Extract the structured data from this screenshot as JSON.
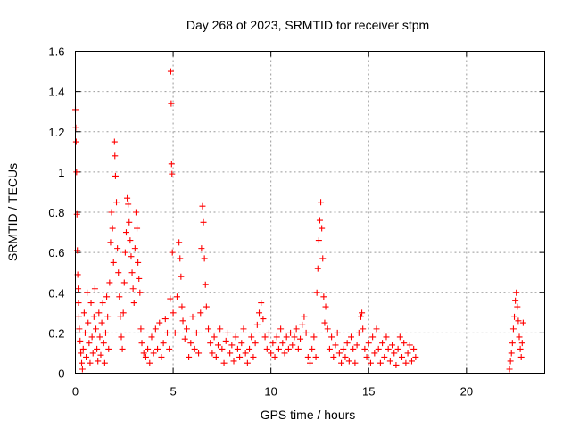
{
  "chart_data": {
    "type": "scatter",
    "title": "Day 268 of 2023, SRMTID for receiver stpm",
    "xlabel": "GPS time / hours",
    "ylabel": "SRMTID / TECUs",
    "xlim": [
      0,
      24
    ],
    "ylim": [
      0,
      1.6
    ],
    "xticks": [
      0,
      5,
      10,
      15,
      20
    ],
    "xtick_labels": [
      "0",
      "5",
      "10",
      "15",
      "20"
    ],
    "yticks": [
      0,
      0.2,
      0.4,
      0.6,
      0.8,
      1.0,
      1.2,
      1.4,
      1.6
    ],
    "ytick_labels": [
      "0",
      "0.2",
      "0.4",
      "0.6",
      "0.8",
      "1",
      "1.2",
      "1.4",
      "1.6"
    ],
    "grid": true,
    "marker": "+",
    "color": "#ff0000",
    "series": [
      {
        "name": "SRMTID",
        "points": [
          [
            0.0,
            1.31
          ],
          [
            0.02,
            1.22
          ],
          [
            0.04,
            1.15
          ],
          [
            0.06,
            1.0
          ],
          [
            0.08,
            0.79
          ],
          [
            0.1,
            0.61
          ],
          [
            0.12,
            0.49
          ],
          [
            0.14,
            0.42
          ],
          [
            0.16,
            0.35
          ],
          [
            0.18,
            0.28
          ],
          [
            0.2,
            0.22
          ],
          [
            0.24,
            0.16
          ],
          [
            0.28,
            0.1
          ],
          [
            0.32,
            0.05
          ],
          [
            0.36,
            0.02
          ],
          [
            0.4,
            0.12
          ],
          [
            0.45,
            0.3
          ],
          [
            0.5,
            0.2
          ],
          [
            0.55,
            0.08
          ],
          [
            0.6,
            0.4
          ],
          [
            0.65,
            0.25
          ],
          [
            0.7,
            0.15
          ],
          [
            0.75,
            0.05
          ],
          [
            0.8,
            0.35
          ],
          [
            0.85,
            0.18
          ],
          [
            0.9,
            0.1
          ],
          [
            0.95,
            0.28
          ],
          [
            1.0,
            0.42
          ],
          [
            1.05,
            0.22
          ],
          [
            1.1,
            0.12
          ],
          [
            1.15,
            0.06
          ],
          [
            1.2,
            0.3
          ],
          [
            1.25,
            0.18
          ],
          [
            1.3,
            0.09
          ],
          [
            1.35,
            0.25
          ],
          [
            1.4,
            0.35
          ],
          [
            1.45,
            0.15
          ],
          [
            1.5,
            0.05
          ],
          [
            1.55,
            0.2
          ],
          [
            1.6,
            0.38
          ],
          [
            1.65,
            0.28
          ],
          [
            1.7,
            0.12
          ],
          [
            1.75,
            0.45
          ],
          [
            1.8,
            0.65
          ],
          [
            1.85,
            0.8
          ],
          [
            1.9,
            0.72
          ],
          [
            1.95,
            0.55
          ],
          [
            2.0,
            1.15
          ],
          [
            2.02,
            1.08
          ],
          [
            2.05,
            0.98
          ],
          [
            2.1,
            0.85
          ],
          [
            2.15,
            0.62
          ],
          [
            2.2,
            0.5
          ],
          [
            2.25,
            0.38
          ],
          [
            2.3,
            0.28
          ],
          [
            2.35,
            0.18
          ],
          [
            2.4,
            0.12
          ],
          [
            2.45,
            0.3
          ],
          [
            2.5,
            0.45
          ],
          [
            2.55,
            0.6
          ],
          [
            2.6,
            0.7
          ],
          [
            2.65,
            0.87
          ],
          [
            2.7,
            0.84
          ],
          [
            2.75,
            0.75
          ],
          [
            2.8,
            0.66
          ],
          [
            2.85,
            0.58
          ],
          [
            2.9,
            0.5
          ],
          [
            2.95,
            0.42
          ],
          [
            3.0,
            0.35
          ],
          [
            3.05,
            0.62
          ],
          [
            3.1,
            0.8
          ],
          [
            3.15,
            0.72
          ],
          [
            3.2,
            0.55
          ],
          [
            3.25,
            0.47
          ],
          [
            3.3,
            0.4
          ],
          [
            3.35,
            0.22
          ],
          [
            3.4,
            0.15
          ],
          [
            3.5,
            0.1
          ],
          [
            3.6,
            0.08
          ],
          [
            3.7,
            0.12
          ],
          [
            3.8,
            0.05
          ],
          [
            3.9,
            0.18
          ],
          [
            4.0,
            0.1
          ],
          [
            4.1,
            0.22
          ],
          [
            4.2,
            0.12
          ],
          [
            4.3,
            0.25
          ],
          [
            4.4,
            0.08
          ],
          [
            4.5,
            0.15
          ],
          [
            4.6,
            0.27
          ],
          [
            4.7,
            0.2
          ],
          [
            4.8,
            0.12
          ],
          [
            4.85,
            0.37
          ],
          [
            4.88,
            1.5
          ],
          [
            4.9,
            1.34
          ],
          [
            4.92,
            1.04
          ],
          [
            4.94,
            0.99
          ],
          [
            4.96,
            0.6
          ],
          [
            5.0,
            0.3
          ],
          [
            5.1,
            0.2
          ],
          [
            5.2,
            0.38
          ],
          [
            5.3,
            0.65
          ],
          [
            5.35,
            0.57
          ],
          [
            5.4,
            0.48
          ],
          [
            5.45,
            0.33
          ],
          [
            5.5,
            0.26
          ],
          [
            5.6,
            0.17
          ],
          [
            5.7,
            0.22
          ],
          [
            5.8,
            0.08
          ],
          [
            5.9,
            0.15
          ],
          [
            6.0,
            0.28
          ],
          [
            6.1,
            0.12
          ],
          [
            6.2,
            0.2
          ],
          [
            6.3,
            0.1
          ],
          [
            6.4,
            0.3
          ],
          [
            6.45,
            0.62
          ],
          [
            6.5,
            0.83
          ],
          [
            6.55,
            0.75
          ],
          [
            6.6,
            0.57
          ],
          [
            6.65,
            0.44
          ],
          [
            6.7,
            0.33
          ],
          [
            6.8,
            0.22
          ],
          [
            6.9,
            0.15
          ],
          [
            7.0,
            0.1
          ],
          [
            7.1,
            0.18
          ],
          [
            7.2,
            0.08
          ],
          [
            7.3,
            0.14
          ],
          [
            7.4,
            0.22
          ],
          [
            7.5,
            0.12
          ],
          [
            7.6,
            0.05
          ],
          [
            7.7,
            0.16
          ],
          [
            7.8,
            0.2
          ],
          [
            7.9,
            0.1
          ],
          [
            8.0,
            0.14
          ],
          [
            8.1,
            0.06
          ],
          [
            8.2,
            0.18
          ],
          [
            8.3,
            0.12
          ],
          [
            8.4,
            0.08
          ],
          [
            8.5,
            0.15
          ],
          [
            8.6,
            0.22
          ],
          [
            8.7,
            0.1
          ],
          [
            8.8,
            0.05
          ],
          [
            8.9,
            0.12
          ],
          [
            9.0,
            0.18
          ],
          [
            9.1,
            0.08
          ],
          [
            9.2,
            0.15
          ],
          [
            9.3,
            0.24
          ],
          [
            9.4,
            0.3
          ],
          [
            9.5,
            0.35
          ],
          [
            9.6,
            0.27
          ],
          [
            9.7,
            0.18
          ],
          [
            9.8,
            0.12
          ],
          [
            9.9,
            0.2
          ],
          [
            10.0,
            0.1
          ],
          [
            10.1,
            0.15
          ],
          [
            10.2,
            0.08
          ],
          [
            10.3,
            0.18
          ],
          [
            10.4,
            0.12
          ],
          [
            10.5,
            0.22
          ],
          [
            10.6,
            0.15
          ],
          [
            10.7,
            0.1
          ],
          [
            10.8,
            0.18
          ],
          [
            10.9,
            0.12
          ],
          [
            11.0,
            0.2
          ],
          [
            11.1,
            0.14
          ],
          [
            11.2,
            0.18
          ],
          [
            11.3,
            0.22
          ],
          [
            11.4,
            0.12
          ],
          [
            11.5,
            0.17
          ],
          [
            11.6,
            0.24
          ],
          [
            11.7,
            0.28
          ],
          [
            11.8,
            0.2
          ],
          [
            11.9,
            0.08
          ],
          [
            12.0,
            0.05
          ],
          [
            12.1,
            0.12
          ],
          [
            12.2,
            0.18
          ],
          [
            12.3,
            0.08
          ],
          [
            12.35,
            0.4
          ],
          [
            12.4,
            0.52
          ],
          [
            12.45,
            0.66
          ],
          [
            12.5,
            0.76
          ],
          [
            12.55,
            0.85
          ],
          [
            12.6,
            0.72
          ],
          [
            12.65,
            0.57
          ],
          [
            12.7,
            0.38
          ],
          [
            12.75,
            0.25
          ],
          [
            12.8,
            0.33
          ],
          [
            12.9,
            0.22
          ],
          [
            13.0,
            0.12
          ],
          [
            13.1,
            0.18
          ],
          [
            13.2,
            0.08
          ],
          [
            13.3,
            0.14
          ],
          [
            13.4,
            0.2
          ],
          [
            13.5,
            0.1
          ],
          [
            13.6,
            0.05
          ],
          [
            13.7,
            0.12
          ],
          [
            13.8,
            0.08
          ],
          [
            13.9,
            0.15
          ],
          [
            14.0,
            0.06
          ],
          [
            14.1,
            0.18
          ],
          [
            14.2,
            0.12
          ],
          [
            14.3,
            0.05
          ],
          [
            14.4,
            0.14
          ],
          [
            14.5,
            0.2
          ],
          [
            14.6,
            0.28
          ],
          [
            14.65,
            0.3
          ],
          [
            14.7,
            0.22
          ],
          [
            14.8,
            0.12
          ],
          [
            14.9,
            0.08
          ],
          [
            15.0,
            0.15
          ],
          [
            15.1,
            0.05
          ],
          [
            15.2,
            0.18
          ],
          [
            15.3,
            0.1
          ],
          [
            15.4,
            0.22
          ],
          [
            15.5,
            0.12
          ],
          [
            15.6,
            0.05
          ],
          [
            15.7,
            0.15
          ],
          [
            15.8,
            0.08
          ],
          [
            15.9,
            0.18
          ],
          [
            16.0,
            0.12
          ],
          [
            16.1,
            0.06
          ],
          [
            16.2,
            0.14
          ],
          [
            16.3,
            0.1
          ],
          [
            16.4,
            0.04
          ],
          [
            16.5,
            0.12
          ],
          [
            16.6,
            0.18
          ],
          [
            16.7,
            0.08
          ],
          [
            16.8,
            0.15
          ],
          [
            16.9,
            0.05
          ],
          [
            17.0,
            0.1
          ],
          [
            17.1,
            0.14
          ],
          [
            17.2,
            0.06
          ],
          [
            17.3,
            0.12
          ],
          [
            17.4,
            0.08
          ],
          [
            22.2,
            0.02
          ],
          [
            22.25,
            0.06
          ],
          [
            22.3,
            0.1
          ],
          [
            22.35,
            0.15
          ],
          [
            22.4,
            0.22
          ],
          [
            22.45,
            0.28
          ],
          [
            22.5,
            0.36
          ],
          [
            22.55,
            0.4
          ],
          [
            22.6,
            0.33
          ],
          [
            22.65,
            0.26
          ],
          [
            22.7,
            0.18
          ],
          [
            22.75,
            0.12
          ],
          [
            22.8,
            0.08
          ],
          [
            22.85,
            0.15
          ],
          [
            22.9,
            0.25
          ]
        ]
      }
    ]
  }
}
